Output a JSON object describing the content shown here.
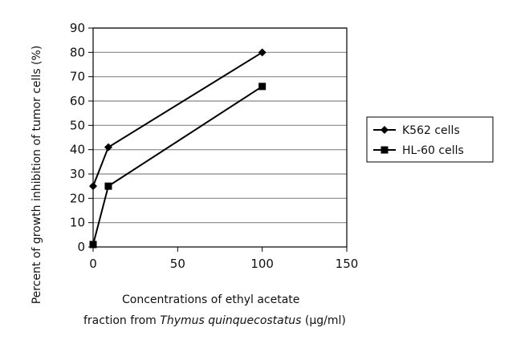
{
  "chart_data": {
    "type": "line",
    "title": "",
    "ylabel": "Percent of growth inhibition of tumor cells (%)",
    "xlabel_line1": "Concentrations of ethyl acetate",
    "xlabel_line2_prefix": "fraction from ",
    "xlabel_line2_italic": "Thymus quinquecostatus",
    "xlabel_line2_suffix": " (μg/ml)",
    "xlim": [
      0,
      150
    ],
    "ylim": [
      0,
      90
    ],
    "xticks": [
      0,
      50,
      100,
      150
    ],
    "yticks": [
      0,
      10,
      20,
      30,
      40,
      50,
      60,
      70,
      80,
      90
    ],
    "grid": "horizontal",
    "legend_position": "right",
    "series": [
      {
        "name": "K562 cells",
        "marker": "diamond",
        "color": "#000000",
        "points": [
          [
            0,
            25
          ],
          [
            9,
            41
          ],
          [
            100,
            80
          ]
        ]
      },
      {
        "name": "HL-60 cells",
        "marker": "square",
        "color": "#000000",
        "points": [
          [
            0,
            1
          ],
          [
            9,
            25
          ],
          [
            100,
            66
          ]
        ]
      }
    ]
  }
}
